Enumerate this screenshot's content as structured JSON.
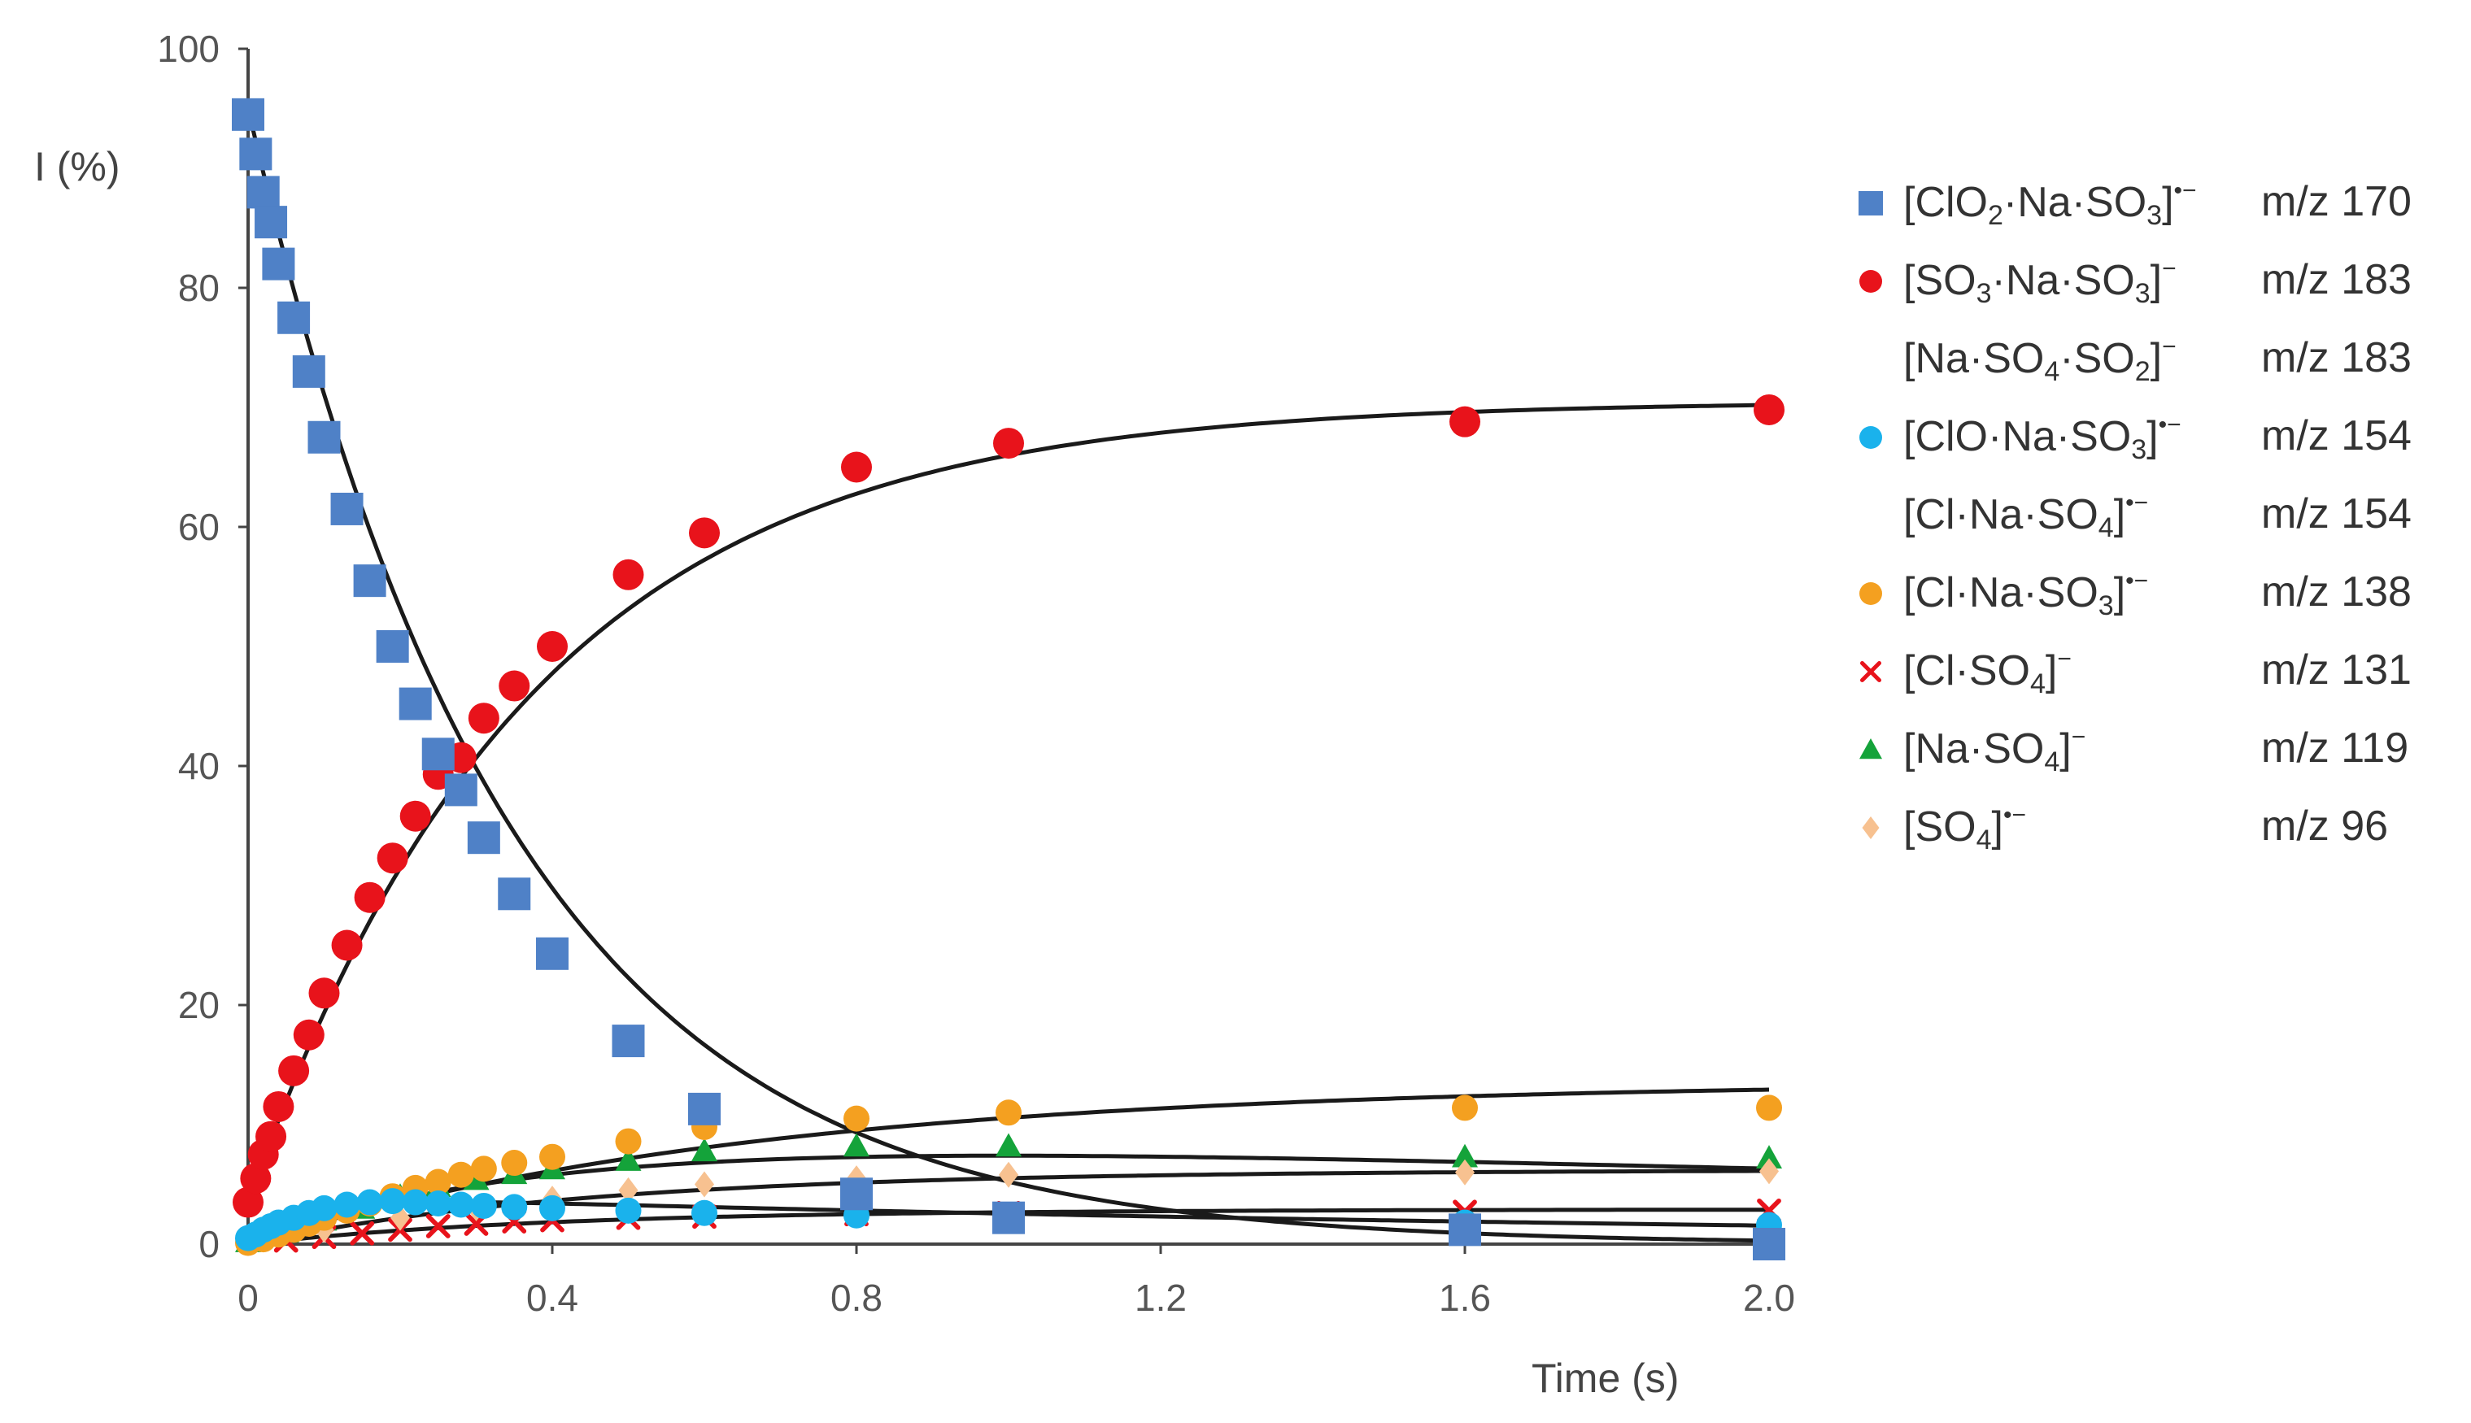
{
  "chart_data": {
    "type": "scatter",
    "title": "",
    "xlabel": "Time (s)",
    "ylabel": "I (%)",
    "xlim": [
      0,
      2.0
    ],
    "ylim": [
      0,
      100
    ],
    "xticks": [
      "0",
      "0.4",
      "0.8",
      "1.2",
      "1.6",
      "2.0"
    ],
    "yticks": [
      "0",
      "20",
      "40",
      "60",
      "80",
      "100"
    ],
    "grid": false,
    "legend_position": "right",
    "fit_curves": true,
    "series": [
      {
        "name": "ClO2·Na·SO3",
        "label_parts": [
          [
            "[ClO",
            ""
          ],
          [
            "2",
            "sub"
          ],
          [
            "·Na·SO",
            ""
          ],
          [
            "3",
            "sub"
          ],
          [
            "]",
            ""
          ],
          [
            "•−",
            "sup"
          ]
        ],
        "mz": "m/z 170",
        "marker": "square",
        "color": "#4f81c7",
        "x": [
          0,
          0.01,
          0.02,
          0.03,
          0.04,
          0.06,
          0.08,
          0.1,
          0.13,
          0.16,
          0.19,
          0.22,
          0.25,
          0.28,
          0.31,
          0.35,
          0.4,
          0.5,
          0.6,
          0.8,
          1.0,
          1.6,
          2.0
        ],
        "values": [
          94.5,
          91.2,
          88,
          85.5,
          82,
          77.5,
          73,
          67.5,
          61.5,
          55.5,
          50,
          45.2,
          41,
          38,
          34,
          29.3,
          24.3,
          17,
          11.3,
          4.2,
          2.2,
          1.2,
          0
        ],
        "fit": {
          "kind": "decay",
          "a": 95,
          "k": 2.9
        }
      },
      {
        "name": "SO3·Na·SO3",
        "label_parts": [
          [
            "[SO",
            ""
          ],
          [
            "3",
            "sub"
          ],
          [
            "·Na·SO",
            ""
          ],
          [
            "3",
            "sub"
          ],
          [
            "]",
            ""
          ],
          [
            "−",
            "sup"
          ]
        ],
        "mz": "m/z 183",
        "marker": "circle",
        "color": "#e8131b",
        "x": [
          0,
          0.01,
          0.02,
          0.03,
          0.04,
          0.06,
          0.08,
          0.1,
          0.13,
          0.16,
          0.19,
          0.22,
          0.25,
          0.28,
          0.31,
          0.35,
          0.4,
          0.5,
          0.6,
          0.8,
          1.0,
          1.6,
          2.0
        ],
        "values": [
          3.5,
          5.5,
          7.5,
          9,
          11.5,
          14.5,
          17.5,
          21,
          25,
          29,
          32.3,
          35.8,
          39.3,
          40.7,
          44,
          46.7,
          50,
          56,
          59.5,
          65,
          67,
          68.8,
          69.8
        ],
        "fit": {
          "kind": "rise",
          "a": 70.5,
          "k": 2.7,
          "b": 3.5
        }
      },
      {
        "name": "Na·SO4·SO2",
        "label_parts": [
          [
            "[Na·SO",
            ""
          ],
          [
            "4",
            "sub"
          ],
          [
            "·SO",
            ""
          ],
          [
            "2",
            "sub"
          ],
          [
            "]",
            ""
          ],
          [
            "−",
            "sup"
          ]
        ],
        "mz": "m/z 183",
        "marker": "none",
        "color": "#ffffff",
        "x": [],
        "values": []
      },
      {
        "name": "ClO·Na·SO3",
        "label_parts": [
          [
            "[ClO·Na·SO",
            ""
          ],
          [
            "3",
            "sub"
          ],
          [
            "]",
            ""
          ],
          [
            "•−",
            "sup"
          ]
        ],
        "mz": "m/z 154",
        "marker": "circle",
        "color": "#1ab2ec",
        "x": [
          0,
          0.01,
          0.02,
          0.03,
          0.04,
          0.06,
          0.08,
          0.1,
          0.13,
          0.16,
          0.19,
          0.22,
          0.25,
          0.28,
          0.31,
          0.35,
          0.4,
          0.5,
          0.6,
          0.8,
          1.0,
          1.6,
          2.0
        ],
        "values": [
          0.5,
          0.8,
          1.2,
          1.5,
          1.8,
          2.2,
          2.6,
          3,
          3.3,
          3.5,
          3.6,
          3.5,
          3.4,
          3.3,
          3.2,
          3.1,
          3,
          2.8,
          2.6,
          2.4,
          2.1,
          1.8,
          1.6
        ],
        "fit": {
          "kind": "hump",
          "a": 4.2,
          "k1": 12,
          "k2": 0.5
        }
      },
      {
        "name": "Cl·Na·SO4",
        "label_parts": [
          [
            "[Cl·Na·SO",
            ""
          ],
          [
            "4",
            "sub"
          ],
          [
            "]",
            ""
          ],
          [
            "•−",
            "sup"
          ]
        ],
        "mz": "m/z 154",
        "marker": "none",
        "color": "#ffffff",
        "x": [],
        "values": []
      },
      {
        "name": "Cl·Na·SO3",
        "label_parts": [
          [
            "[Cl·Na·SO",
            ""
          ],
          [
            "3",
            "sub"
          ],
          [
            "]",
            ""
          ],
          [
            "•−",
            "sup"
          ]
        ],
        "mz": "m/z 138",
        "marker": "circle",
        "color": "#f4a020",
        "x": [
          0,
          0.02,
          0.04,
          0.06,
          0.08,
          0.1,
          0.13,
          0.16,
          0.19,
          0.22,
          0.25,
          0.28,
          0.31,
          0.35,
          0.4,
          0.5,
          0.6,
          0.8,
          1.0,
          1.6,
          2.0
        ],
        "values": [
          0.1,
          0.4,
          0.8,
          1.2,
          1.7,
          2.2,
          2.8,
          3.4,
          4,
          4.7,
          5.2,
          5.8,
          6.3,
          6.8,
          7.3,
          8.6,
          9.8,
          10.5,
          11,
          11.4,
          11.4
        ],
        "fit": {
          "kind": "rise",
          "a": 13.6,
          "k": 1.5,
          "b": 0
        }
      },
      {
        "name": "Cl·SO4",
        "label_parts": [
          [
            "[Cl·SO",
            ""
          ],
          [
            "4",
            "sub"
          ],
          [
            "]",
            ""
          ],
          [
            "−",
            "sup"
          ]
        ],
        "mz": "m/z 131",
        "marker": "x",
        "color": "#e8131b",
        "x": [
          0.05,
          0.1,
          0.15,
          0.2,
          0.25,
          0.3,
          0.35,
          0.4,
          0.5,
          0.6,
          0.8,
          1.0,
          1.6,
          2.0
        ],
        "values": [
          0.3,
          0.6,
          0.9,
          1.2,
          1.5,
          1.7,
          1.9,
          2,
          2.2,
          2.3,
          2.5,
          2.6,
          2.7,
          2.8
        ],
        "fit": {
          "kind": "rise",
          "a": 2.9,
          "k": 2.5,
          "b": 0
        }
      },
      {
        "name": "Na·SO4",
        "label_parts": [
          [
            "[Na·SO",
            ""
          ],
          [
            "4",
            "sub"
          ],
          [
            "]",
            ""
          ],
          [
            "−",
            "sup"
          ]
        ],
        "mz": "m/z 119",
        "marker": "triangle",
        "color": "#14a33a",
        "x": [
          0,
          0.05,
          0.1,
          0.15,
          0.2,
          0.25,
          0.3,
          0.35,
          0.4,
          0.5,
          0.6,
          0.8,
          1.0,
          1.6,
          2.0
        ],
        "values": [
          0.2,
          1,
          2,
          3,
          4,
          4.8,
          5.4,
          5.9,
          6.3,
          7,
          7.8,
          8.2,
          8.2,
          7.3,
          7.2
        ],
        "fit": {
          "kind": "hump",
          "a": 10.5,
          "k1": 2.6,
          "k2": 0.25
        }
      },
      {
        "name": "SO4",
        "label_parts": [
          [
            "[SO",
            ""
          ],
          [
            "4",
            "sub"
          ],
          [
            "]",
            ""
          ],
          [
            "•−",
            "sup"
          ]
        ],
        "mz": "m/z 96",
        "marker": "diamond",
        "color": "#f7c190",
        "x": [
          0,
          0.1,
          0.2,
          0.3,
          0.4,
          0.5,
          0.6,
          0.8,
          1.0,
          1.6,
          2.0
        ],
        "values": [
          0.1,
          1.2,
          2.2,
          3,
          3.8,
          4.5,
          5,
          5.5,
          5.8,
          6,
          6.1
        ],
        "fit": {
          "kind": "rise",
          "a": 6.2,
          "k": 2.2,
          "b": 0
        }
      }
    ]
  }
}
